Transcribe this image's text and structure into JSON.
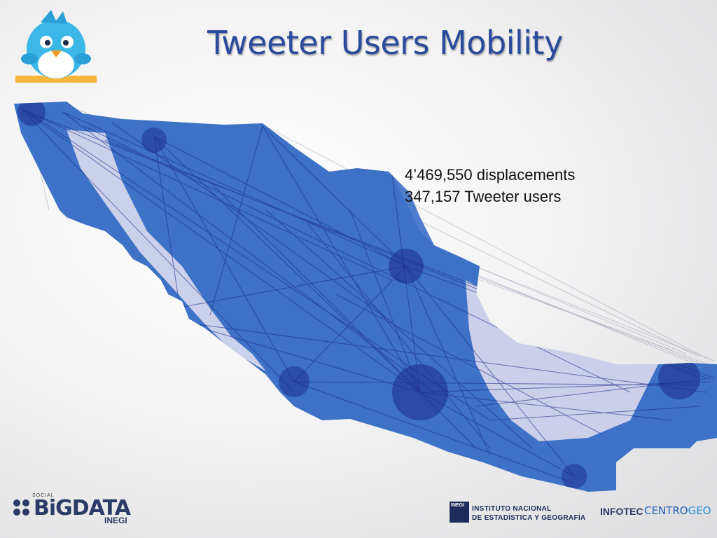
{
  "slide": {
    "title": "Tweeter Users Mobility",
    "stats": {
      "displacements": "4’469,550 displacements",
      "users": "347,157 Tweeter users"
    }
  },
  "logos": {
    "social_label": "SOCIAL",
    "bigdata": "BiGDATA",
    "bigdata_sub": "INEGI",
    "inegi_seal": "INEGI",
    "inegi_line1": "INSTITUTO NACIONAL",
    "inegi_line2": "DE ESTADÍSTICA Y GEOGRAFÍA",
    "infotec": "INFOTEC",
    "centrogeo_a": "CENTRO",
    "centrogeo_b": "GEO"
  },
  "colors": {
    "map_fill": "#3d72c6",
    "flow_lines": "#1b2a8a",
    "title": "#2a4a9c"
  }
}
